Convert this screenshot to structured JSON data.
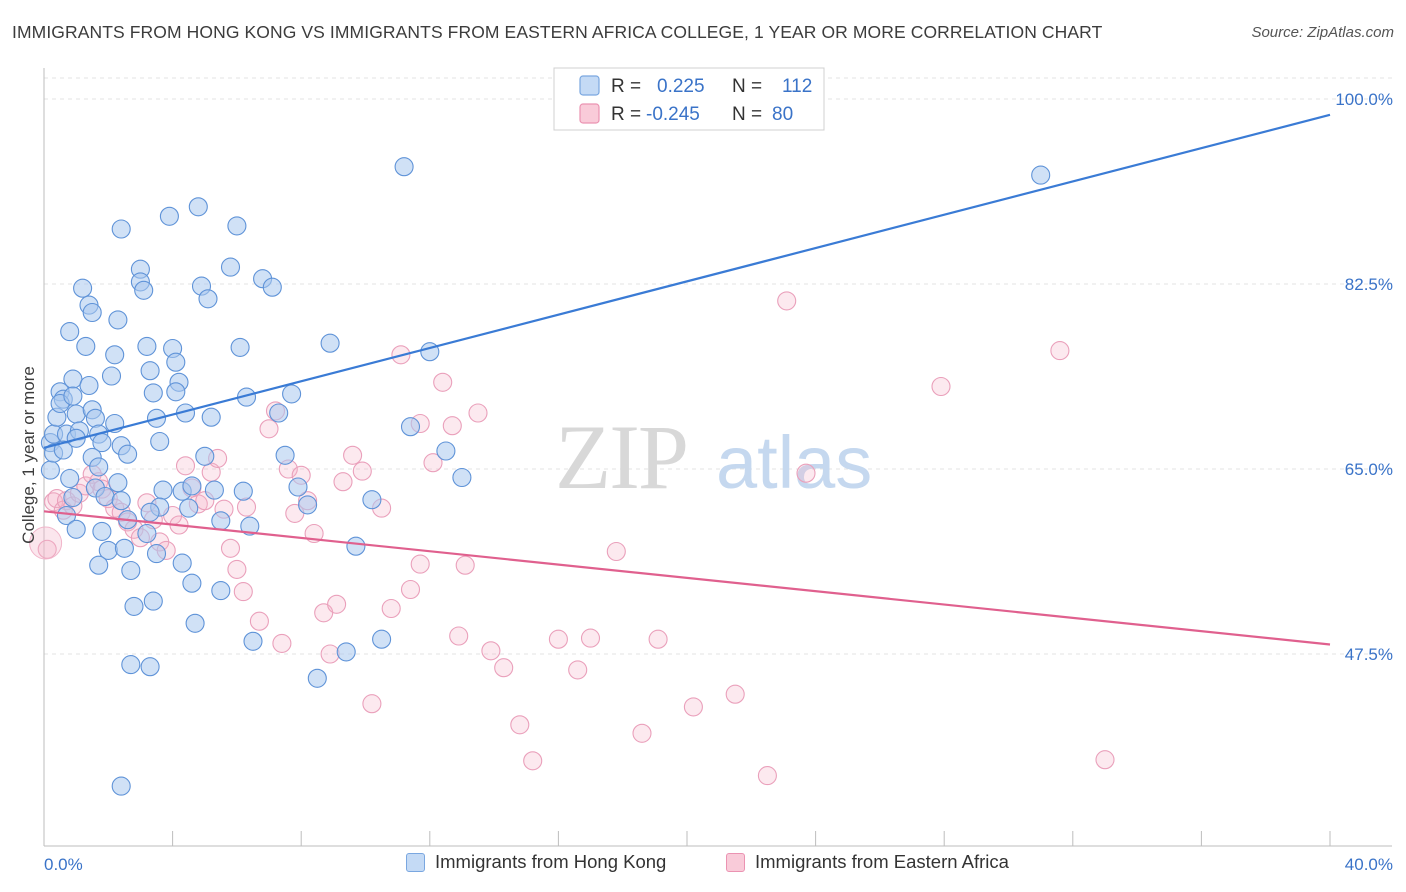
{
  "title": "IMMIGRANTS FROM HONG KONG VS IMMIGRANTS FROM EASTERN AFRICA COLLEGE, 1 YEAR OR MORE CORRELATION CHART",
  "source": "Source: ZipAtlas.com",
  "watermark": {
    "zip": "ZIP",
    "atlas": "atlas"
  },
  "legend": {
    "rows": [
      {
        "r_label": "R =",
        "r_value": "0.225",
        "n_label": "N =",
        "n_value": "112"
      },
      {
        "r_label": "R =",
        "r_value": "-0.245",
        "n_label": "N =",
        "n_value": "80"
      }
    ]
  },
  "bottom_legend": {
    "series1": "Immigrants from Hong Kong",
    "series2": "Immigrants from Eastern Africa"
  },
  "colors": {
    "blue": "#3a7bd5",
    "blue_fill": "#aac8ef",
    "pink": "#e0608e",
    "pink_fill": "#f4b7cb",
    "axis_label": "#3a73c8"
  },
  "chart_data": {
    "type": "scatter",
    "title": "IMMIGRANTS FROM HONG KONG VS IMMIGRANTS FROM EASTERN AFRICA COLLEGE, 1 YEAR OR MORE CORRELATION CHART",
    "xlabel": "",
    "ylabel": "College, 1 year or more",
    "xlim": [
      0,
      40
    ],
    "ylim": [
      30,
      100
    ],
    "x_tick_labels": [
      "0.0%",
      "40.0%"
    ],
    "y_ticks": [
      47.5,
      65.0,
      82.5,
      100.0
    ],
    "y_tick_labels": [
      "47.5%",
      "65.0%",
      "82.5%",
      "100.0%"
    ],
    "grid": "horizontal dashed",
    "legend_position": "top-center",
    "series": [
      {
        "name": "Immigrants from Hong Kong",
        "color": "#3a7bd5",
        "R": 0.225,
        "N": 112,
        "trend": {
          "x": [
            0,
            40
          ],
          "y": [
            67.0,
            98.5
          ]
        },
        "points": [
          [
            0.2,
            67.5
          ],
          [
            0.3,
            68.3
          ],
          [
            0.4,
            69.9
          ],
          [
            0.5,
            72.3
          ],
          [
            0.6,
            71.6
          ],
          [
            0.7,
            68.3
          ],
          [
            0.2,
            64.9
          ],
          [
            0.3,
            66.5
          ],
          [
            0.5,
            71.2
          ],
          [
            0.6,
            66.8
          ],
          [
            0.8,
            78.0
          ],
          [
            0.9,
            73.5
          ],
          [
            0.9,
            71.9
          ],
          [
            1.0,
            70.2
          ],
          [
            1.1,
            68.6
          ],
          [
            1.0,
            67.9
          ],
          [
            0.8,
            64.1
          ],
          [
            0.9,
            62.3
          ],
          [
            0.7,
            60.6
          ],
          [
            1.0,
            59.3
          ],
          [
            1.2,
            82.1
          ],
          [
            1.4,
            80.5
          ],
          [
            1.5,
            79.8
          ],
          [
            1.3,
            76.6
          ],
          [
            1.4,
            72.9
          ],
          [
            1.5,
            70.6
          ],
          [
            1.6,
            69.8
          ],
          [
            1.7,
            68.3
          ],
          [
            1.8,
            67.5
          ],
          [
            1.5,
            66.1
          ],
          [
            1.7,
            65.2
          ],
          [
            1.6,
            63.2
          ],
          [
            1.9,
            62.4
          ],
          [
            1.8,
            59.1
          ],
          [
            2.0,
            57.3
          ],
          [
            1.7,
            55.9
          ],
          [
            2.4,
            87.7
          ],
          [
            2.3,
            79.1
          ],
          [
            2.2,
            75.8
          ],
          [
            2.1,
            73.8
          ],
          [
            2.2,
            69.3
          ],
          [
            2.4,
            67.2
          ],
          [
            2.6,
            66.4
          ],
          [
            2.3,
            63.7
          ],
          [
            2.4,
            62.0
          ],
          [
            2.6,
            60.2
          ],
          [
            2.5,
            57.5
          ],
          [
            2.7,
            55.4
          ],
          [
            2.8,
            52.0
          ],
          [
            2.7,
            46.5
          ],
          [
            3.0,
            83.9
          ],
          [
            3.0,
            82.7
          ],
          [
            3.1,
            81.9
          ],
          [
            3.2,
            76.6
          ],
          [
            3.3,
            74.3
          ],
          [
            3.4,
            72.2
          ],
          [
            3.5,
            69.8
          ],
          [
            3.6,
            67.6
          ],
          [
            3.7,
            63.0
          ],
          [
            3.6,
            61.4
          ],
          [
            3.3,
            60.9
          ],
          [
            3.2,
            58.9
          ],
          [
            3.5,
            57.0
          ],
          [
            3.4,
            52.5
          ],
          [
            3.3,
            46.3
          ],
          [
            3.9,
            88.9
          ],
          [
            4.0,
            76.4
          ],
          [
            4.1,
            75.1
          ],
          [
            4.2,
            73.2
          ],
          [
            4.1,
            72.3
          ],
          [
            4.4,
            70.3
          ],
          [
            4.3,
            62.9
          ],
          [
            4.5,
            61.3
          ],
          [
            4.6,
            63.4
          ],
          [
            4.3,
            56.1
          ],
          [
            4.6,
            54.2
          ],
          [
            4.7,
            50.4
          ],
          [
            4.8,
            89.8
          ],
          [
            4.9,
            82.3
          ],
          [
            5.1,
            81.1
          ],
          [
            5.2,
            69.9
          ],
          [
            5.0,
            66.2
          ],
          [
            5.3,
            63.0
          ],
          [
            5.5,
            60.1
          ],
          [
            5.5,
            53.5
          ],
          [
            5.8,
            84.1
          ],
          [
            6.0,
            88.0
          ],
          [
            6.1,
            76.5
          ],
          [
            6.3,
            71.8
          ],
          [
            6.2,
            62.9
          ],
          [
            6.4,
            59.6
          ],
          [
            6.5,
            48.7
          ],
          [
            6.8,
            83.0
          ],
          [
            7.1,
            82.2
          ],
          [
            7.3,
            70.3
          ],
          [
            7.5,
            66.3
          ],
          [
            7.7,
            72.1
          ],
          [
            7.9,
            63.3
          ],
          [
            8.2,
            61.6
          ],
          [
            8.5,
            45.2
          ],
          [
            8.9,
            76.9
          ],
          [
            9.4,
            47.7
          ],
          [
            9.7,
            57.7
          ],
          [
            10.2,
            62.1
          ],
          [
            10.5,
            48.9
          ],
          [
            11.2,
            93.6
          ],
          [
            11.4,
            69.0
          ],
          [
            12.0,
            76.1
          ],
          [
            12.5,
            66.7
          ],
          [
            13.0,
            64.2
          ],
          [
            2.4,
            35.0
          ],
          [
            31.0,
            92.8
          ]
        ]
      },
      {
        "name": "Immigrants from Eastern Africa",
        "color": "#e0608e",
        "R": -0.245,
        "N": 80,
        "trend": {
          "x": [
            0,
            40
          ],
          "y": [
            61.0,
            48.4
          ]
        },
        "points": [
          [
            0.1,
            57.4
          ],
          [
            0.3,
            61.9
          ],
          [
            0.4,
            62.2
          ],
          [
            0.6,
            61.1
          ],
          [
            0.7,
            62.0
          ],
          [
            0.9,
            61.5
          ],
          [
            1.1,
            62.7
          ],
          [
            1.3,
            63.4
          ],
          [
            1.5,
            64.5
          ],
          [
            1.7,
            63.8
          ],
          [
            1.8,
            63.1
          ],
          [
            2.0,
            62.2
          ],
          [
            2.2,
            61.3
          ],
          [
            2.4,
            60.9
          ],
          [
            2.6,
            60.0
          ],
          [
            2.8,
            59.3
          ],
          [
            3.0,
            58.5
          ],
          [
            3.2,
            61.8
          ],
          [
            3.4,
            60.2
          ],
          [
            3.6,
            58.1
          ],
          [
            3.8,
            57.3
          ],
          [
            4.0,
            60.6
          ],
          [
            4.2,
            59.7
          ],
          [
            4.4,
            65.3
          ],
          [
            4.6,
            63.2
          ],
          [
            4.8,
            61.7
          ],
          [
            5.0,
            62.0
          ],
          [
            5.2,
            64.7
          ],
          [
            5.4,
            66.0
          ],
          [
            5.6,
            61.2
          ],
          [
            5.8,
            57.5
          ],
          [
            6.0,
            55.5
          ],
          [
            6.2,
            53.4
          ],
          [
            6.3,
            61.4
          ],
          [
            6.7,
            50.6
          ],
          [
            7.0,
            68.8
          ],
          [
            7.2,
            70.5
          ],
          [
            7.4,
            48.5
          ],
          [
            7.6,
            65.0
          ],
          [
            7.8,
            60.8
          ],
          [
            8.0,
            64.4
          ],
          [
            8.2,
            62.0
          ],
          [
            8.4,
            58.9
          ],
          [
            8.7,
            51.4
          ],
          [
            8.9,
            47.5
          ],
          [
            9.1,
            52.2
          ],
          [
            9.3,
            63.8
          ],
          [
            9.6,
            66.3
          ],
          [
            9.9,
            64.8
          ],
          [
            10.2,
            42.8
          ],
          [
            10.5,
            61.3
          ],
          [
            10.8,
            51.8
          ],
          [
            11.1,
            75.8
          ],
          [
            11.4,
            53.6
          ],
          [
            11.7,
            69.3
          ],
          [
            12.1,
            65.6
          ],
          [
            12.4,
            73.2
          ],
          [
            12.7,
            69.1
          ],
          [
            13.1,
            55.9
          ],
          [
            13.5,
            70.3
          ],
          [
            13.9,
            47.8
          ],
          [
            14.3,
            46.2
          ],
          [
            14.8,
            40.8
          ],
          [
            15.2,
            37.4
          ],
          [
            16.0,
            48.9
          ],
          [
            16.6,
            46.0
          ],
          [
            17.0,
            49.0
          ],
          [
            17.8,
            57.2
          ],
          [
            18.6,
            40.0
          ],
          [
            19.1,
            48.9
          ],
          [
            20.2,
            42.5
          ],
          [
            21.5,
            43.7
          ],
          [
            22.5,
            36.0
          ],
          [
            23.1,
            80.9
          ],
          [
            23.7,
            64.6
          ],
          [
            27.9,
            72.8
          ],
          [
            31.6,
            76.2
          ],
          [
            33.0,
            37.5
          ],
          [
            12.9,
            49.2
          ],
          [
            11.7,
            56.0
          ]
        ]
      }
    ]
  }
}
